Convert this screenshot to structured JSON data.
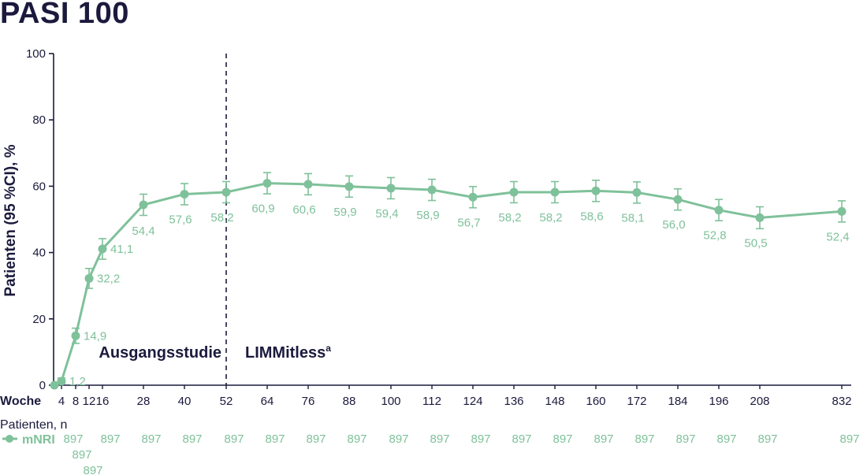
{
  "chart_data": {
    "type": "line",
    "title": "PASI 100",
    "ylabel": "Patienten (95 %CI), %",
    "xlabel": "Woche",
    "ylim": [
      0,
      100
    ],
    "yticks": [
      "0",
      "20",
      "40",
      "60",
      "80",
      "100"
    ],
    "grid": false,
    "x_tick_labels": [
      "4",
      "8",
      "12",
      "16",
      "28",
      "40",
      "52",
      "64",
      "76",
      "88",
      "100",
      "112",
      "124",
      "136",
      "148",
      "160",
      "172",
      "184",
      "196",
      "208",
      "832"
    ],
    "series": [
      {
        "name": "mNRI",
        "color": "#7fc19a",
        "x": [
          0,
          4,
          8,
          12,
          16,
          28,
          40,
          52,
          64,
          76,
          88,
          100,
          112,
          124,
          136,
          148,
          160,
          172,
          184,
          196,
          208,
          832
        ],
        "y": [
          0,
          1.2,
          14.9,
          32.2,
          41.1,
          54.4,
          57.6,
          58.2,
          60.9,
          60.6,
          59.9,
          59.4,
          58.9,
          56.7,
          58.2,
          58.2,
          58.6,
          58.1,
          56.0,
          52.8,
          50.5,
          52.4
        ],
        "y_labels": [
          "",
          "1,2",
          "14,9",
          "32,2",
          "41,1",
          "54,4",
          "57,6",
          "58,2",
          "60,9",
          "60,6",
          "59,9",
          "59,4",
          "58,9",
          "56,7",
          "58,2",
          "58,2",
          "58,6",
          "58,1",
          "56,0",
          "52,8",
          "50,5",
          "52,4"
        ],
        "ci_lower": [
          null,
          0.5,
          12.6,
          29.2,
          38.0,
          51.2,
          54.4,
          55.0,
          57.7,
          57.4,
          56.7,
          56.2,
          55.7,
          53.5,
          55.0,
          55.0,
          55.4,
          54.9,
          52.8,
          49.6,
          47.2,
          49.2
        ],
        "ci_upper": [
          null,
          2.2,
          17.2,
          35.2,
          44.2,
          57.6,
          60.8,
          61.4,
          64.1,
          63.8,
          63.1,
          62.6,
          62.1,
          59.9,
          61.4,
          61.4,
          61.8,
          61.3,
          59.2,
          56.0,
          53.8,
          55.6
        ]
      }
    ],
    "phases": {
      "left": "Ausgangsstudie",
      "right": "LIMMitless",
      "right_superscript": "a",
      "divider_at_week": 52
    },
    "patients": {
      "header": "Patienten, n",
      "series_label": "mNRI",
      "counts": [
        "897",
        "897",
        "897",
        "897",
        "897",
        "897",
        "897",
        "897",
        "897",
        "897",
        "897",
        "897",
        "897",
        "897",
        "897",
        "897",
        "897",
        "897",
        "897",
        "897",
        "897"
      ]
    }
  }
}
